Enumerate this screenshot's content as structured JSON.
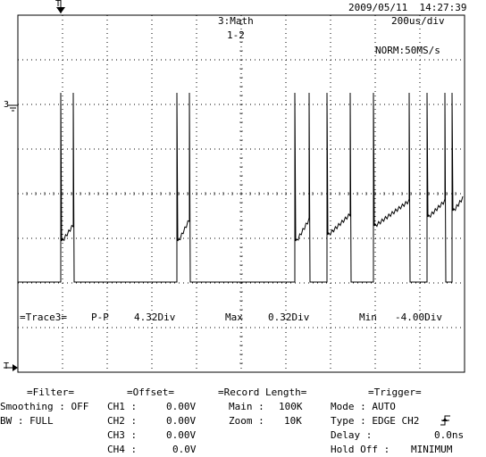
{
  "header": {
    "datetime": "2009/05/11  14:27:39",
    "timebase": "200us/div",
    "math_title": "3:Math",
    "math_expr": "1-2",
    "acq_mode": "NORM:50MS/s"
  },
  "markers": {
    "trigger_marker": "T",
    "channel_marker": "3",
    "trigger_level_marker": "T"
  },
  "measurement": {
    "trace_label": "=Trace3=",
    "pp_label": "P-P",
    "pp_value": "4.32Div",
    "max_label": "Max",
    "max_value": "0.32Div",
    "min_label": "Min",
    "min_value": "-4.00Div"
  },
  "filter": {
    "title": "=Filter=",
    "smoothing": "Smoothing : OFF",
    "bw": "BW : FULL"
  },
  "offset": {
    "title": "=Offset=",
    "rows": [
      {
        "label": "CH1 :",
        "value": "0.00V"
      },
      {
        "label": "CH2 :",
        "value": "0.00V"
      },
      {
        "label": "CH3 :",
        "value": "0.00V"
      },
      {
        "label": "CH4 :",
        "value": "0.0V"
      }
    ]
  },
  "record_length": {
    "title": "=Record Length=",
    "main_label": "Main :",
    "main_value": "100K",
    "zoom_label": "Zoom :",
    "zoom_value": "10K"
  },
  "trigger": {
    "title": "=Trigger=",
    "mode": "Mode : AUTO",
    "type": "Type : EDGE CH2",
    "delay_label": "Delay :",
    "delay_value": "0.0ns",
    "holdoff_label": "Hold Off :",
    "holdoff_value": "MINIMUM"
  },
  "colors": {
    "trace": "#000000",
    "grid": "#000000"
  }
}
